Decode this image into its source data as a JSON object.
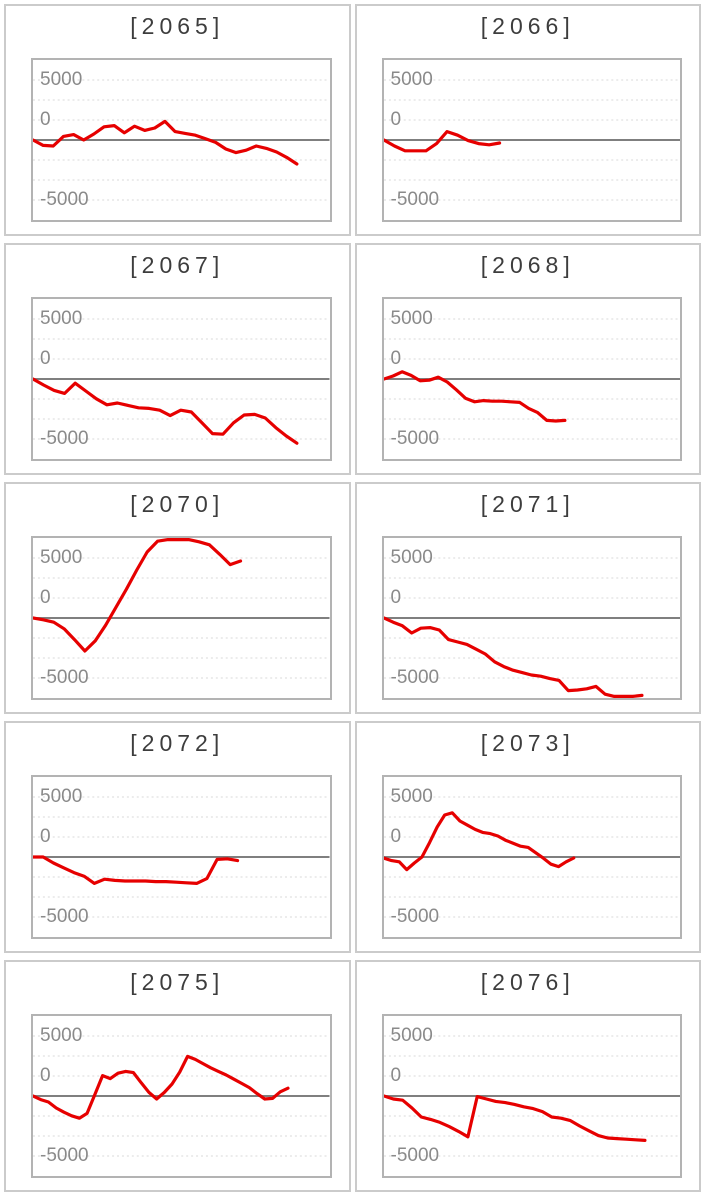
{
  "colors": {
    "line_red": "#e60000",
    "zero_line": "#7f7f7f",
    "gridline": "#d9d9d9",
    "axis_label_text": "#8a8a8a",
    "title_text": "#3d3d3d",
    "panel_border": "#cbcbcb",
    "plot_border": "#b3b3b3",
    "background": "#ffffff"
  },
  "y_axis": {
    "tick_labels": [
      "5000",
      "0",
      "-5000"
    ],
    "tick_values": [
      5000,
      0,
      -5000
    ],
    "range": [
      -6667,
      6667
    ],
    "gridline_count": 7,
    "gridline_style": "dotted",
    "zero_line_style": "solid",
    "labels_inside_plot": true
  },
  "chart_data": [
    {
      "type": "line",
      "title": "[2065]",
      "x_end_fraction": 0.89,
      "values": [
        0,
        -450,
        -500,
        300,
        450,
        0,
        500,
        1100,
        1200,
        600,
        1150,
        800,
        1000,
        1550,
        700,
        550,
        400,
        100,
        -200,
        -750,
        -1050,
        -850,
        -500,
        -700,
        -1000,
        -1450,
        -2000
      ]
    },
    {
      "type": "line",
      "title": "[2066]",
      "x_end_fraction": 0.39,
      "values": [
        0,
        -500,
        -900,
        -900,
        -900,
        -300,
        700,
        400,
        -50,
        -300,
        -400,
        -250
      ]
    },
    {
      "type": "line",
      "title": "[2067]",
      "x_end_fraction": 0.89,
      "values": [
        0,
        -500,
        -950,
        -1200,
        -350,
        -1000,
        -1650,
        -2150,
        -2000,
        -2200,
        -2400,
        -2450,
        -2600,
        -3050,
        -2600,
        -2750,
        -3650,
        -4550,
        -4600,
        -3650,
        -3000,
        -2950,
        -3250,
        -4050,
        -4750,
        -5350
      ]
    },
    {
      "type": "line",
      "title": "[2068]",
      "x_end_fraction": 0.61,
      "values": [
        0,
        250,
        600,
        300,
        -150,
        -100,
        150,
        -250,
        -900,
        -1600,
        -1900,
        -1800,
        -1850,
        -1850,
        -1900,
        -1950,
        -2450,
        -2800,
        -3450,
        -3500,
        -3450
      ]
    },
    {
      "type": "line",
      "title": "[2070]",
      "x_end_fraction": 0.7,
      "values": [
        0,
        -150,
        -350,
        -900,
        -1800,
        -2750,
        -1900,
        -600,
        900,
        2400,
        4000,
        5500,
        6400,
        6600,
        6600,
        6600,
        6350,
        6100,
        5300,
        4450,
        4750
      ]
    },
    {
      "type": "line",
      "title": "[2071]",
      "x_end_fraction": 0.87,
      "values": [
        0,
        -350,
        -650,
        -1250,
        -850,
        -800,
        -1000,
        -1800,
        -2000,
        -2200,
        -2600,
        -3000,
        -3650,
        -4050,
        -4350,
        -4550,
        -4750,
        -4850,
        -5050,
        -5200,
        -6050,
        -6000,
        -5900,
        -5700,
        -6350,
        -6550,
        -6600,
        -6550,
        -6450
      ]
    },
    {
      "type": "line",
      "title": "[2072]",
      "x_end_fraction": 0.69,
      "values": [
        0,
        0,
        -500,
        -900,
        -1300,
        -1600,
        -2200,
        -1850,
        -1950,
        -2000,
        -2000,
        -2000,
        -2050,
        -2050,
        -2100,
        -2150,
        -2200,
        -1800,
        -200,
        -150,
        -300
      ]
    },
    {
      "type": "line",
      "title": "[2073]",
      "x_end_fraction": 0.64,
      "values": [
        -100,
        -300,
        -400,
        -1050,
        -500,
        0,
        1200,
        2500,
        3500,
        3680,
        3000,
        2650,
        2300,
        2050,
        1950,
        1750,
        1400,
        1150,
        900,
        800,
        350,
        -100,
        -600,
        -800,
        -400,
        -80
      ]
    },
    {
      "type": "line",
      "title": "[2075]",
      "x_end_fraction": 0.86,
      "values": [
        0,
        -300,
        -500,
        -1000,
        -1350,
        -1650,
        -1850,
        -1450,
        100,
        1700,
        1450,
        1900,
        2050,
        1950,
        1100,
        300,
        -250,
        300,
        1000,
        2000,
        3300,
        3050,
        2700,
        2350,
        2050,
        1750,
        1400,
        1050,
        700,
        200,
        -250,
        -200,
        350,
        650
      ]
    },
    {
      "type": "line",
      "title": "[2076]",
      "x_end_fraction": 0.88,
      "values": [
        0,
        -250,
        -350,
        -1000,
        -1750,
        -1950,
        -2200,
        -2550,
        -2950,
        -3400,
        -50,
        -250,
        -450,
        -550,
        -700,
        -900,
        -1050,
        -1300,
        -1750,
        -1850,
        -2050,
        -2500,
        -2900,
        -3300,
        -3500,
        -3550,
        -3600,
        -3650,
        -3700
      ]
    }
  ]
}
